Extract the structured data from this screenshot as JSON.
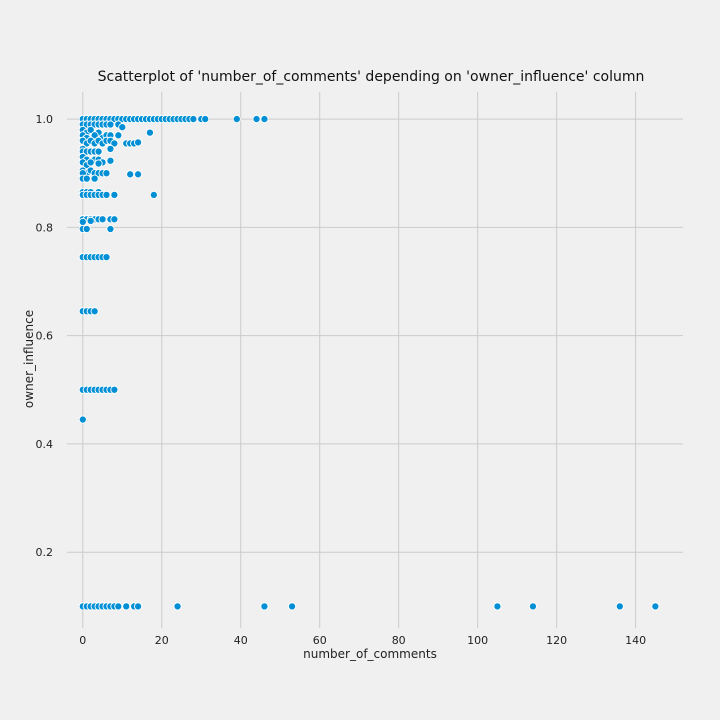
{
  "chart_data": {
    "type": "scatter",
    "title": "Scatterplot of 'number_of_comments' depending on 'owner_influence' column",
    "xlabel": "number_of_comments",
    "ylabel": "owner_influence",
    "xlim": [
      -4,
      152
    ],
    "ylim": [
      0.06,
      1.05
    ],
    "xticks": [
      0,
      20,
      40,
      60,
      80,
      100,
      120,
      140
    ],
    "yticks": [
      0.2,
      0.4,
      0.6,
      0.8,
      1.0
    ],
    "xtick_labels": [
      "0",
      "20",
      "40",
      "60",
      "80",
      "100",
      "120",
      "140"
    ],
    "ytick_labels": [
      "0.2",
      "0.4",
      "0.6",
      "0.8",
      "1.0"
    ],
    "grid": true,
    "colors": {
      "point": "#008fd5",
      "grid": "#cbcbcb",
      "background": "#f0f0f0"
    },
    "series": [
      {
        "points": [
          [
            0,
            1.0
          ],
          [
            1,
            1.0
          ],
          [
            2,
            1.0
          ],
          [
            3,
            1.0
          ],
          [
            4,
            1.0
          ],
          [
            5,
            1.0
          ],
          [
            6,
            1.0
          ],
          [
            7,
            1.0
          ],
          [
            8,
            1.0
          ],
          [
            9,
            1.0
          ],
          [
            10,
            1.0
          ],
          [
            11,
            1.0
          ],
          [
            12,
            1.0
          ],
          [
            13,
            1.0
          ],
          [
            14,
            1.0
          ],
          [
            15,
            1.0
          ],
          [
            16,
            1.0
          ],
          [
            17,
            1.0
          ],
          [
            18,
            1.0
          ],
          [
            19,
            1.0
          ],
          [
            20,
            1.0
          ],
          [
            21,
            1.0
          ],
          [
            22,
            1.0
          ],
          [
            23,
            1.0
          ],
          [
            24,
            1.0
          ],
          [
            25,
            1.0
          ],
          [
            26,
            1.0
          ],
          [
            27,
            1.0
          ],
          [
            28,
            1.0
          ],
          [
            30,
            1.0
          ],
          [
            31,
            1.0
          ],
          [
            39,
            1.0
          ],
          [
            44,
            1.0
          ],
          [
            46,
            1.0
          ],
          [
            0,
            0.99
          ],
          [
            1,
            0.99
          ],
          [
            2,
            0.99
          ],
          [
            3,
            0.99
          ],
          [
            4,
            0.99
          ],
          [
            5,
            0.99
          ],
          [
            6,
            0.99
          ],
          [
            7,
            0.99
          ],
          [
            9,
            0.99
          ],
          [
            10,
            0.985
          ],
          [
            0,
            0.98
          ],
          [
            1,
            0.975
          ],
          [
            2,
            0.98
          ],
          [
            4,
            0.975
          ],
          [
            0,
            0.97
          ],
          [
            1,
            0.965
          ],
          [
            3,
            0.97
          ],
          [
            5,
            0.965
          ],
          [
            6,
            0.97
          ],
          [
            7,
            0.97
          ],
          [
            9,
            0.97
          ],
          [
            17,
            0.975
          ],
          [
            0,
            0.96
          ],
          [
            1,
            0.955
          ],
          [
            2,
            0.96
          ],
          [
            3,
            0.955
          ],
          [
            4,
            0.96
          ],
          [
            5,
            0.955
          ],
          [
            6,
            0.96
          ],
          [
            7,
            0.96
          ],
          [
            8,
            0.955
          ],
          [
            11,
            0.955
          ],
          [
            12,
            0.955
          ],
          [
            13,
            0.955
          ],
          [
            14,
            0.957
          ],
          [
            0,
            0.945
          ],
          [
            0,
            0.94
          ],
          [
            1,
            0.94
          ],
          [
            2,
            0.94
          ],
          [
            3,
            0.94
          ],
          [
            4,
            0.94
          ],
          [
            7,
            0.945
          ],
          [
            0,
            0.93
          ],
          [
            1,
            0.925
          ],
          [
            3,
            0.925
          ],
          [
            4,
            0.925
          ],
          [
            5,
            0.92
          ],
          [
            0,
            0.92
          ],
          [
            1,
            0.915
          ],
          [
            2,
            0.92
          ],
          [
            4,
            0.918
          ],
          [
            7,
            0.923
          ],
          [
            0,
            0.905
          ],
          [
            1,
            0.9
          ],
          [
            2,
            0.905
          ],
          [
            0,
            0.9
          ],
          [
            3,
            0.9
          ],
          [
            4,
            0.9
          ],
          [
            5,
            0.9
          ],
          [
            6,
            0.9
          ],
          [
            12,
            0.898
          ],
          [
            14,
            0.898
          ],
          [
            0,
            0.89
          ],
          [
            1,
            0.89
          ],
          [
            3,
            0.89
          ],
          [
            0,
            0.865
          ],
          [
            1,
            0.865
          ],
          [
            2,
            0.865
          ],
          [
            4,
            0.865
          ],
          [
            0,
            0.86
          ],
          [
            1,
            0.86
          ],
          [
            2,
            0.86
          ],
          [
            3,
            0.86
          ],
          [
            4,
            0.86
          ],
          [
            5,
            0.86
          ],
          [
            6,
            0.86
          ],
          [
            8,
            0.86
          ],
          [
            18,
            0.86
          ],
          [
            0,
            0.815
          ],
          [
            1,
            0.815
          ],
          [
            2,
            0.815
          ],
          [
            3,
            0.815
          ],
          [
            4,
            0.815
          ],
          [
            5,
            0.815
          ],
          [
            7,
            0.815
          ],
          [
            8,
            0.815
          ],
          [
            0,
            0.81
          ],
          [
            2,
            0.812
          ],
          [
            0,
            0.797
          ],
          [
            1,
            0.797
          ],
          [
            7,
            0.797
          ],
          [
            0,
            0.745
          ],
          [
            1,
            0.745
          ],
          [
            2,
            0.745
          ],
          [
            3,
            0.745
          ],
          [
            4,
            0.745
          ],
          [
            5,
            0.745
          ],
          [
            6,
            0.745
          ],
          [
            0,
            0.645
          ],
          [
            1,
            0.645
          ],
          [
            2,
            0.645
          ],
          [
            3,
            0.645
          ],
          [
            0,
            0.5
          ],
          [
            1,
            0.5
          ],
          [
            2,
            0.5
          ],
          [
            3,
            0.5
          ],
          [
            4,
            0.5
          ],
          [
            5,
            0.5
          ],
          [
            6,
            0.5
          ],
          [
            7,
            0.5
          ],
          [
            8,
            0.5
          ],
          [
            0,
            0.445
          ],
          [
            0,
            0.1
          ],
          [
            1,
            0.1
          ],
          [
            2,
            0.1
          ],
          [
            3,
            0.1
          ],
          [
            4,
            0.1
          ],
          [
            5,
            0.1
          ],
          [
            6,
            0.1
          ],
          [
            7,
            0.1
          ],
          [
            8,
            0.1
          ],
          [
            9,
            0.1
          ],
          [
            11,
            0.1
          ],
          [
            13,
            0.1
          ],
          [
            14,
            0.1
          ],
          [
            24,
            0.1
          ],
          [
            46,
            0.1
          ],
          [
            53,
            0.1
          ],
          [
            105,
            0.1
          ],
          [
            114,
            0.1
          ],
          [
            136,
            0.1
          ],
          [
            145,
            0.1
          ]
        ]
      }
    ]
  }
}
